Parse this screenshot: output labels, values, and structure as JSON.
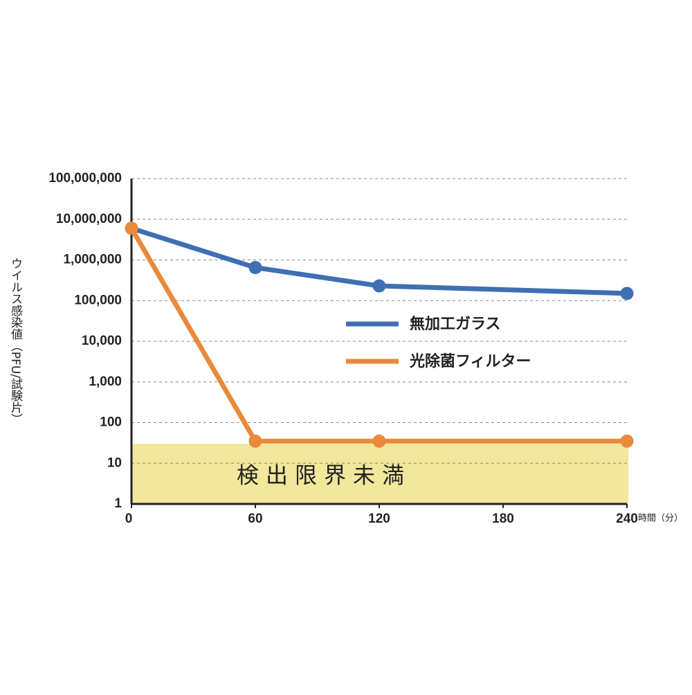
{
  "chart_data": {
    "type": "line",
    "y_label": "ウイルス感染値（PFU/試験片）",
    "x_label": "時間（分）",
    "x": [
      0,
      60,
      120,
      240
    ],
    "series": [
      {
        "name": "無加工ガラス",
        "color": "#3f6fb3",
        "values": [
          6000000,
          650000,
          230000,
          150000
        ]
      },
      {
        "name": "光除菌フィルター",
        "color": "#e98a3b",
        "values": [
          6000000,
          35,
          35,
          35
        ]
      }
    ],
    "xlim": [
      0,
      240
    ],
    "xticks": [
      0,
      60,
      120,
      180,
      240
    ],
    "ylim": [
      1,
      100000000
    ],
    "log_y": true,
    "yticks": [
      1,
      10,
      100,
      {
        "value": 1000,
        "label": "1,000"
      },
      {
        "value": 10000,
        "label": "10,000"
      },
      {
        "value": 100000,
        "label": "100,000"
      },
      {
        "value": 1000000,
        "label": "1,000,000"
      },
      {
        "value": 10000000,
        "label": "10,000,000"
      },
      {
        "value": 100000000,
        "label": "100,000,000"
      }
    ],
    "grid": true,
    "legend": "center-right",
    "shaded_region": {
      "label": "検出限界未満",
      "y_max": 30,
      "color": "#f2e79a"
    }
  }
}
